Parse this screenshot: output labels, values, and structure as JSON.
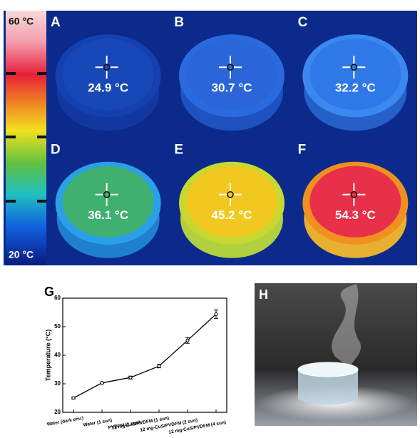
{
  "colorbar": {
    "max_label": "60 °C",
    "min_label": "20 °C"
  },
  "panels": [
    {
      "label": "A",
      "temperature": "24.9 °C"
    },
    {
      "label": "B",
      "temperature": "30.7 °C"
    },
    {
      "label": "C",
      "temperature": "32.2 °C"
    },
    {
      "label": "D",
      "temperature": "36.1 °C"
    },
    {
      "label": "E",
      "temperature": "45.2 °C"
    },
    {
      "label": "F",
      "temperature": "54.3 °C"
    }
  ],
  "chart_data": {
    "type": "line",
    "panel_label": "G",
    "y_label": "Temperature (°C)",
    "categories": [
      "Water (dark env.)",
      "Water (1 sun)",
      "PVDFM (1 sun)",
      "12 mg-CuS/PVDFM (1 sun)",
      "12 mg-CuS/PVDFM (2 sun)",
      "12 mg-CuS/PVDFM (4 sun)"
    ],
    "series": [
      {
        "color": "#000000",
        "values": [
          25,
          30.3,
          32.2,
          36.2,
          45.2,
          54.4
        ],
        "errors": [
          0.3,
          0.3,
          0.5,
          0.6,
          1,
          1.5
        ]
      }
    ],
    "ylim": [
      20,
      60
    ],
    "yticks": [
      20,
      30,
      40,
      50,
      60
    ]
  },
  "photo": {
    "label": "H"
  }
}
